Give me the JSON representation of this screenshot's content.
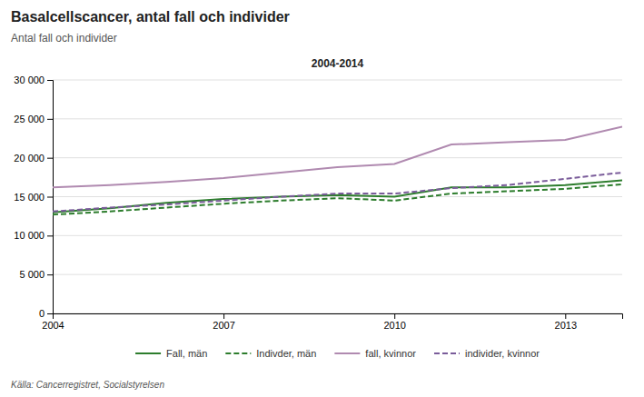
{
  "chart_data": {
    "type": "line",
    "title": "Basalcellscancer, antal fall och individer",
    "subtitle": "Antal fall och individer",
    "annotations": [
      "2004-2014"
    ],
    "source": "Källa: Cancerregistret, Socialstyrelsen",
    "x": [
      2004,
      2005,
      2006,
      2007,
      2008,
      2009,
      2010,
      2011,
      2012,
      2013,
      2014
    ],
    "series": [
      {
        "name": "Fall, män",
        "color": "#2d7d2d",
        "line_style": "solid",
        "values": [
          13000,
          13500,
          14200,
          14700,
          15000,
          15200,
          15000,
          16200,
          16200,
          16500,
          17100
        ]
      },
      {
        "name": "Indivder, män",
        "color": "#2d7d2d",
        "line_style": "dashed",
        "values": [
          12700,
          13100,
          13600,
          14100,
          14500,
          14800,
          14500,
          15400,
          15700,
          16000,
          16600
        ]
      },
      {
        "name": "fall, kvinnor",
        "color": "#b08ab0",
        "line_style": "solid",
        "values": [
          16200,
          16500,
          16900,
          17400,
          18100,
          18800,
          19200,
          21700,
          22000,
          22300,
          24000
        ]
      },
      {
        "name": "individer, kvinnor",
        "color": "#7a5c9a",
        "line_style": "dashed",
        "values": [
          13100,
          13600,
          14000,
          14500,
          15000,
          15400,
          15400,
          16100,
          16500,
          17300,
          18100
        ]
      }
    ],
    "xlim": [
      2004,
      2014
    ],
    "xticks": [
      2004,
      2007,
      2010,
      2013
    ],
    "ylim": [
      0,
      30000
    ],
    "yticks": [
      0,
      {
        "value": 5000,
        "label": "5 000"
      },
      {
        "value": 10000,
        "label": "10 000"
      },
      {
        "value": 15000,
        "label": "15 000"
      },
      {
        "value": 20000,
        "label": "20 000"
      },
      {
        "value": 25000,
        "label": "25 000"
      },
      {
        "value": 30000,
        "label": "30 000"
      }
    ],
    "grid": true,
    "legend": "bottom"
  }
}
